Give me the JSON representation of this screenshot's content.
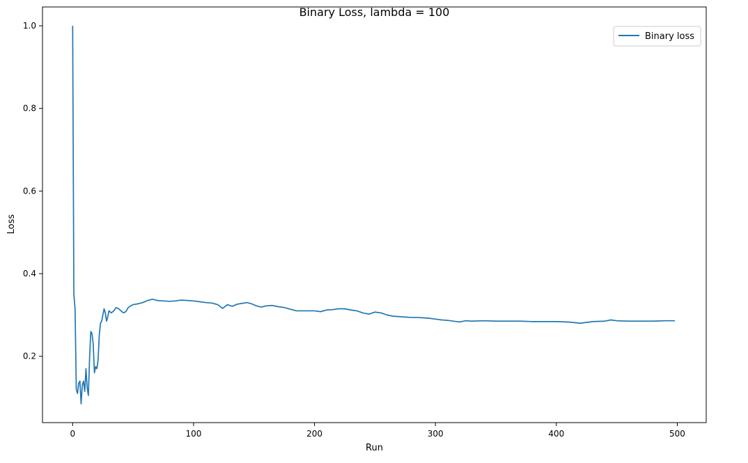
{
  "chart_data": {
    "type": "line",
    "title": "Binary Loss, lambda = 100",
    "xlabel": "Run",
    "ylabel": "Loss",
    "xlim": [
      -24.95,
      523.95
    ],
    "ylim": [
      0.0394,
      1.0456
    ],
    "xticks": [
      0,
      100,
      200,
      300,
      400,
      500
    ],
    "yticks": [
      0.2,
      0.4,
      0.6,
      0.8,
      1.0
    ],
    "xtick_labels": [
      "0",
      "100",
      "200",
      "300",
      "400",
      "500"
    ],
    "ytick_labels": [
      "0.2",
      "0.4",
      "0.6",
      "0.8",
      "1.0"
    ],
    "grid": false,
    "legend_position": "top-right",
    "series": [
      {
        "name": "Binary loss",
        "color": "#1f77b4",
        "points": [
          [
            0,
            1.0
          ],
          [
            1,
            0.35
          ],
          [
            2,
            0.315
          ],
          [
            3,
            0.12
          ],
          [
            4,
            0.11
          ],
          [
            5,
            0.135
          ],
          [
            6,
            0.14
          ],
          [
            7,
            0.085
          ],
          [
            8,
            0.13
          ],
          [
            9,
            0.14
          ],
          [
            10,
            0.115
          ],
          [
            11,
            0.17
          ],
          [
            12,
            0.125
          ],
          [
            13,
            0.105
          ],
          [
            14,
            0.195
          ],
          [
            15,
            0.26
          ],
          [
            16,
            0.255
          ],
          [
            17,
            0.23
          ],
          [
            18,
            0.16
          ],
          [
            19,
            0.175
          ],
          [
            20,
            0.17
          ],
          [
            21,
            0.19
          ],
          [
            22,
            0.25
          ],
          [
            23,
            0.28
          ],
          [
            24,
            0.285
          ],
          [
            25,
            0.3
          ],
          [
            26,
            0.315
          ],
          [
            27,
            0.305
          ],
          [
            28,
            0.285
          ],
          [
            29,
            0.295
          ],
          [
            30,
            0.31
          ],
          [
            32,
            0.305
          ],
          [
            34,
            0.31
          ],
          [
            36,
            0.318
          ],
          [
            38,
            0.315
          ],
          [
            40,
            0.31
          ],
          [
            42,
            0.305
          ],
          [
            44,
            0.308
          ],
          [
            46,
            0.318
          ],
          [
            48,
            0.322
          ],
          [
            50,
            0.325
          ],
          [
            54,
            0.327
          ],
          [
            58,
            0.33
          ],
          [
            62,
            0.335
          ],
          [
            66,
            0.338
          ],
          [
            70,
            0.335
          ],
          [
            75,
            0.334
          ],
          [
            80,
            0.333
          ],
          [
            85,
            0.334
          ],
          [
            90,
            0.336
          ],
          [
            95,
            0.335
          ],
          [
            100,
            0.334
          ],
          [
            105,
            0.332
          ],
          [
            110,
            0.33
          ],
          [
            115,
            0.329
          ],
          [
            120,
            0.325
          ],
          [
            124,
            0.316
          ],
          [
            128,
            0.325
          ],
          [
            132,
            0.321
          ],
          [
            136,
            0.326
          ],
          [
            140,
            0.328
          ],
          [
            144,
            0.33
          ],
          [
            148,
            0.327
          ],
          [
            152,
            0.322
          ],
          [
            156,
            0.319
          ],
          [
            160,
            0.322
          ],
          [
            165,
            0.323
          ],
          [
            170,
            0.32
          ],
          [
            175,
            0.318
          ],
          [
            180,
            0.314
          ],
          [
            185,
            0.31
          ],
          [
            190,
            0.31
          ],
          [
            195,
            0.31
          ],
          [
            200,
            0.31
          ],
          [
            205,
            0.308
          ],
          [
            210,
            0.312
          ],
          [
            215,
            0.313
          ],
          [
            220,
            0.315
          ],
          [
            225,
            0.315
          ],
          [
            230,
            0.312
          ],
          [
            235,
            0.31
          ],
          [
            240,
            0.305
          ],
          [
            245,
            0.302
          ],
          [
            250,
            0.307
          ],
          [
            255,
            0.305
          ],
          [
            260,
            0.3
          ],
          [
            265,
            0.297
          ],
          [
            270,
            0.296
          ],
          [
            275,
            0.295
          ],
          [
            280,
            0.294
          ],
          [
            285,
            0.294
          ],
          [
            290,
            0.293
          ],
          [
            295,
            0.292
          ],
          [
            300,
            0.29
          ],
          [
            305,
            0.288
          ],
          [
            310,
            0.287
          ],
          [
            315,
            0.285
          ],
          [
            320,
            0.283
          ],
          [
            325,
            0.286
          ],
          [
            330,
            0.285
          ],
          [
            340,
            0.286
          ],
          [
            350,
            0.285
          ],
          [
            360,
            0.285
          ],
          [
            370,
            0.285
          ],
          [
            380,
            0.284
          ],
          [
            390,
            0.284
          ],
          [
            400,
            0.284
          ],
          [
            410,
            0.283
          ],
          [
            420,
            0.28
          ],
          [
            430,
            0.284
          ],
          [
            440,
            0.285
          ],
          [
            445,
            0.288
          ],
          [
            450,
            0.286
          ],
          [
            460,
            0.285
          ],
          [
            470,
            0.285
          ],
          [
            480,
            0.285
          ],
          [
            490,
            0.286
          ],
          [
            498,
            0.286
          ]
        ]
      }
    ]
  }
}
